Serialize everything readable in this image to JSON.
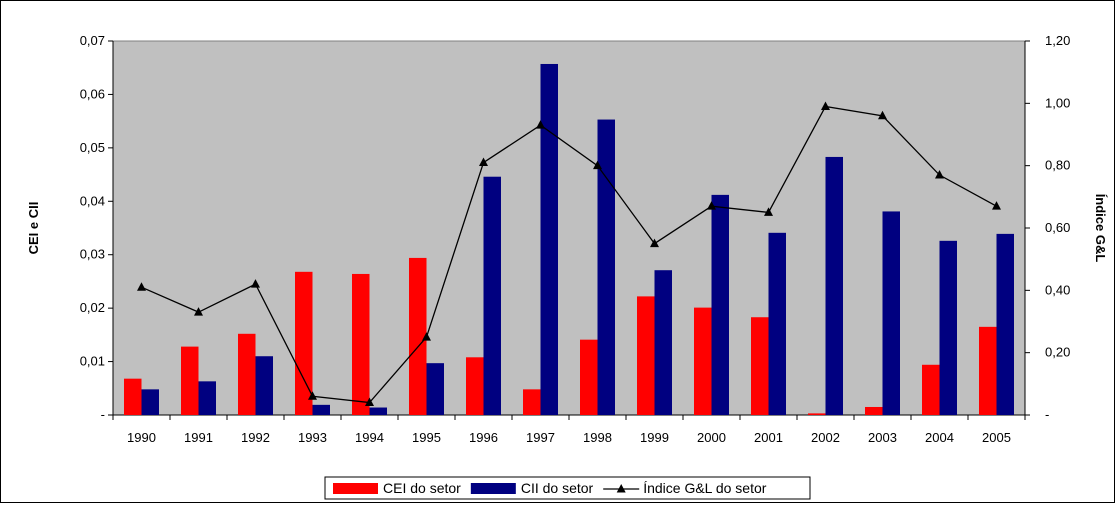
{
  "chart_data": {
    "type": "bar",
    "categories": [
      "1990",
      "1991",
      "1992",
      "1993",
      "1994",
      "1995",
      "1996",
      "1997",
      "1998",
      "1999",
      "2000",
      "2001",
      "2002",
      "2003",
      "2004",
      "2005"
    ],
    "series": [
      {
        "name": "CEI do setor",
        "type": "bar",
        "axis": "left",
        "color": "#ff0000",
        "values": [
          0.0068,
          0.0128,
          0.0152,
          0.0268,
          0.0264,
          0.0294,
          0.0108,
          0.0048,
          0.0141,
          0.0222,
          0.0201,
          0.0183,
          0.0003,
          0.0015,
          0.0094,
          0.0165
        ]
      },
      {
        "name": "CII do setor",
        "type": "bar",
        "axis": "left",
        "color": "#000080",
        "values": [
          0.0048,
          0.0063,
          0.011,
          0.0019,
          0.0014,
          0.0097,
          0.0446,
          0.0657,
          0.0553,
          0.0271,
          0.0412,
          0.0341,
          0.0483,
          0.0381,
          0.0326,
          0.0339
        ]
      },
      {
        "name": "Índice G&L do setor",
        "type": "line",
        "axis": "right",
        "color": "#000000",
        "marker": "triangle",
        "values": [
          0.41,
          0.33,
          0.42,
          0.06,
          0.04,
          0.25,
          0.81,
          0.93,
          0.8,
          0.55,
          0.67,
          0.65,
          0.99,
          0.96,
          0.77,
          0.67
        ]
      }
    ],
    "ylabel": "CEI e CII",
    "y2label": "Índice G&L",
    "ylim": [
      0,
      0.07
    ],
    "y2lim": [
      0,
      1.2
    ],
    "yticks": [
      "-",
      "0,01",
      "0,02",
      "0,03",
      "0,04",
      "0,05",
      "0,06",
      "0,07"
    ],
    "y2ticks": [
      "-",
      "0,20",
      "0,40",
      "0,60",
      "0,80",
      "1,00",
      "1,20"
    ],
    "plot_background": "#c0c0c0",
    "grid": false,
    "legend_position": "bottom"
  }
}
